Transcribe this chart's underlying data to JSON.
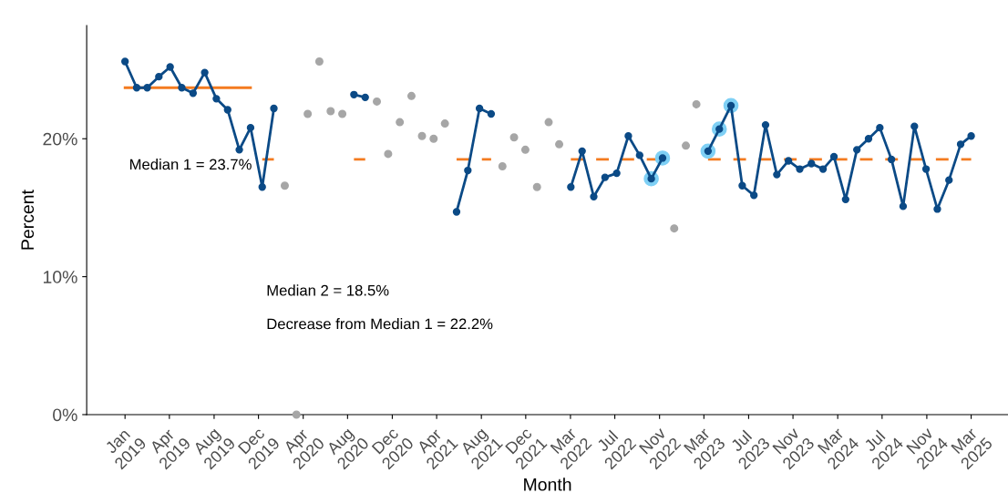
{
  "chart_data": {
    "type": "line",
    "xlabel": "Month",
    "ylabel": "Percent",
    "x": [
      "2019-01",
      "2019-02",
      "2019-03",
      "2019-04",
      "2019-05",
      "2019-06",
      "2019-07",
      "2019-08",
      "2019-09",
      "2019-10",
      "2019-11",
      "2019-12",
      "2020-01",
      "2020-02",
      "2020-03",
      "2020-04",
      "2020-05",
      "2020-06",
      "2020-07",
      "2020-08",
      "2020-09",
      "2020-10",
      "2020-11",
      "2020-12",
      "2021-01",
      "2021-02",
      "2021-03",
      "2021-04",
      "2021-05",
      "2021-06",
      "2021-07",
      "2021-08",
      "2021-09",
      "2021-10",
      "2021-11",
      "2021-12",
      "2022-01",
      "2022-02",
      "2022-03",
      "2022-04",
      "2022-05",
      "2022-06",
      "2022-07",
      "2022-08",
      "2022-09",
      "2022-10",
      "2022-11",
      "2022-12",
      "2023-01",
      "2023-02",
      "2023-03",
      "2023-04",
      "2023-05",
      "2023-06",
      "2023-07",
      "2023-08",
      "2023-09",
      "2023-10",
      "2023-11",
      "2023-12",
      "2024-01",
      "2024-02",
      "2024-03",
      "2024-04",
      "2024-05",
      "2024-06",
      "2024-07",
      "2024-08",
      "2024-09",
      "2024-10",
      "2024-11",
      "2024-12",
      "2025-01",
      "2025-02",
      "2025-03"
    ],
    "series": [
      {
        "type": "line",
        "color": "#f47b20",
        "line_style": "solid",
        "marker": "none",
        "values": [
          23.7,
          23.7,
          23.7,
          23.7,
          23.7,
          23.7,
          23.7,
          23.7,
          23.7,
          23.7,
          23.7,
          23.7,
          null,
          null,
          null,
          null,
          null,
          null,
          null,
          null,
          null,
          null,
          null,
          null,
          null,
          null,
          null,
          null,
          null,
          null,
          null,
          null,
          null,
          null,
          null,
          null,
          null,
          null,
          null,
          null,
          null,
          null,
          null,
          null,
          null,
          null,
          null,
          null,
          null,
          null,
          null,
          null,
          null,
          null,
          null,
          null,
          null,
          null,
          null,
          null,
          null,
          null,
          null,
          null,
          null,
          null,
          null,
          null,
          null,
          null,
          null,
          null,
          null,
          null,
          null
        ]
      },
      {
        "type": "line",
        "color": "#f47b20",
        "line_style": "dashed",
        "marker": "none",
        "values": [
          null,
          null,
          null,
          null,
          null,
          null,
          null,
          null,
          null,
          null,
          null,
          null,
          18.5,
          18.5,
          null,
          null,
          null,
          null,
          null,
          null,
          18.5,
          18.5,
          null,
          null,
          null,
          null,
          null,
          null,
          null,
          18.5,
          18.5,
          18.5,
          18.5,
          null,
          null,
          null,
          null,
          null,
          null,
          18.5,
          18.5,
          18.5,
          18.5,
          18.5,
          18.5,
          18.5,
          18.5,
          18.5,
          null,
          null,
          null,
          18.5,
          18.5,
          18.5,
          18.5,
          18.5,
          18.5,
          18.5,
          18.5,
          18.5,
          18.5,
          18.5,
          18.5,
          18.5,
          18.5,
          18.5,
          18.5,
          18.5,
          18.5,
          18.5,
          18.5,
          18.5,
          18.5,
          18.5,
          18.5
        ]
      },
      {
        "type": "scatter",
        "color": "#a6a6a6",
        "marker": "circle",
        "values": [
          null,
          null,
          null,
          null,
          null,
          null,
          null,
          null,
          null,
          null,
          null,
          null,
          null,
          null,
          16.6,
          0,
          21.8,
          25.6,
          22.0,
          21.8,
          null,
          null,
          22.7,
          18.9,
          21.2,
          23.1,
          20.2,
          20.0,
          21.1,
          null,
          null,
          null,
          null,
          18.0,
          20.1,
          19.2,
          16.5,
          21.2,
          19.6,
          null,
          null,
          null,
          null,
          null,
          null,
          null,
          null,
          null,
          13.5,
          19.5,
          22.5,
          null,
          null,
          null,
          null,
          null,
          null,
          null,
          null,
          null,
          null,
          null,
          null,
          null,
          null,
          null,
          null,
          null,
          null,
          null,
          null,
          null,
          null,
          null,
          null
        ]
      },
      {
        "type": "scatter",
        "color": "#7fd0f5",
        "marker": "circle",
        "values": [
          null,
          null,
          null,
          null,
          null,
          null,
          null,
          null,
          null,
          null,
          null,
          null,
          null,
          null,
          null,
          null,
          null,
          null,
          null,
          null,
          null,
          null,
          null,
          null,
          null,
          null,
          null,
          null,
          null,
          null,
          null,
          null,
          null,
          null,
          null,
          null,
          null,
          null,
          null,
          null,
          null,
          null,
          null,
          null,
          null,
          null,
          17.1,
          18.6,
          null,
          null,
          null,
          19.1,
          20.7,
          22.4,
          null,
          null,
          null,
          null,
          null,
          null,
          null,
          null,
          null,
          null,
          null,
          null,
          null,
          null,
          null,
          null,
          null,
          null,
          null,
          null,
          null
        ]
      },
      {
        "type": "line",
        "color": "#0b4a86",
        "line_style": "solid",
        "marker": "circle",
        "values": [
          25.6,
          23.7,
          23.7,
          24.5,
          25.2,
          23.7,
          23.3,
          24.8,
          22.9,
          22.1,
          19.2,
          20.8,
          16.5,
          22.2,
          null,
          null,
          null,
          null,
          null,
          null,
          23.2,
          23.0,
          null,
          null,
          null,
          null,
          null,
          null,
          null,
          14.7,
          17.7,
          22.2,
          21.8,
          null,
          null,
          null,
          null,
          null,
          null,
          16.5,
          19.1,
          15.8,
          17.2,
          17.5,
          20.2,
          18.8,
          17.1,
          18.6,
          null,
          null,
          null,
          19.1,
          20.7,
          22.4,
          16.6,
          15.9,
          21.0,
          17.4,
          18.4,
          17.8,
          18.2,
          17.8,
          18.7,
          15.6,
          19.2,
          20.0,
          20.8,
          18.5,
          15.1,
          20.9,
          17.8,
          14.9,
          17.0,
          19.6,
          20.2
        ]
      }
    ],
    "xlim": [
      "2018-09-21",
      "2025-06-07"
    ],
    "xticks": [
      {
        "value": "2019-01-01",
        "label": "Jan\n2019"
      },
      {
        "value": "2019-04-29",
        "label": "Apr\n2019"
      },
      {
        "value": "2019-08-26",
        "label": "Aug\n2019"
      },
      {
        "value": "2019-12-22",
        "label": "Dec\n2019"
      },
      {
        "value": "2020-04-19",
        "label": "Apr\n2020"
      },
      {
        "value": "2020-08-15",
        "label": "Aug\n2020"
      },
      {
        "value": "2020-12-12",
        "label": "Dec\n2020"
      },
      {
        "value": "2021-04-09",
        "label": "Apr\n2021"
      },
      {
        "value": "2021-08-06",
        "label": "Aug\n2021"
      },
      {
        "value": "2021-12-02",
        "label": "Dec\n2021"
      },
      {
        "value": "2022-03-31",
        "label": "Mar\n2022"
      },
      {
        "value": "2022-07-27",
        "label": "Jul\n2022"
      },
      {
        "value": "2022-11-23",
        "label": "Nov\n2022"
      },
      {
        "value": "2023-03-21",
        "label": "Mar\n2023"
      },
      {
        "value": "2023-07-18",
        "label": "Jul\n2023"
      },
      {
        "value": "2023-11-13",
        "label": "Nov\n2023"
      },
      {
        "value": "2024-03-11",
        "label": "Mar\n2024"
      },
      {
        "value": "2024-07-07",
        "label": "Jul\n2024"
      },
      {
        "value": "2024-11-03",
        "label": "Nov\n2024"
      },
      {
        "value": "2025-03-01",
        "label": "Mar\n2025"
      }
    ],
    "ylim": [
      0,
      28.2
    ],
    "yticks": [
      {
        "value": 0,
        "label": "0%"
      },
      {
        "value": 10,
        "label": "10%"
      },
      {
        "value": 20,
        "label": "20%"
      }
    ],
    "grid": false,
    "legend": false,
    "annotations": [
      "Median 1 = 23.7%",
      "Median 2 = 18.5%",
      "Decrease from Median 1 = 22.2%"
    ]
  }
}
